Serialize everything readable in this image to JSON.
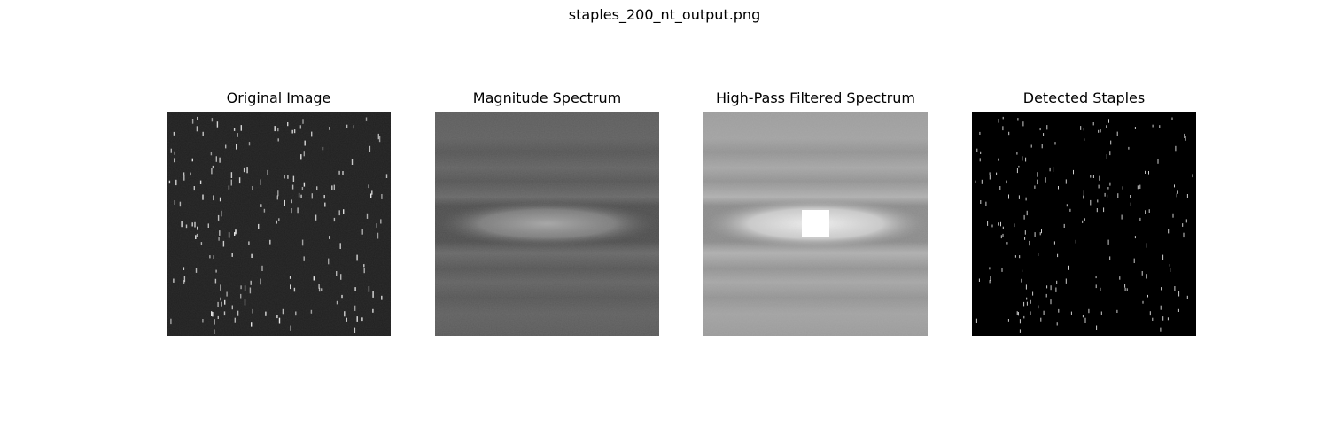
{
  "figure": {
    "title": "staples_200_nt_output.png",
    "panels": [
      {
        "id": "original",
        "title": "Original Image",
        "background": "#202020"
      },
      {
        "id": "magnitude",
        "title": "Magnitude Spectrum",
        "background": "#5a5a5a"
      },
      {
        "id": "highpass",
        "title": "High-Pass Filtered Spectrum",
        "background": "#9a9a9a"
      },
      {
        "id": "detected",
        "title": "Detected Staples",
        "background": "#000000"
      }
    ]
  }
}
